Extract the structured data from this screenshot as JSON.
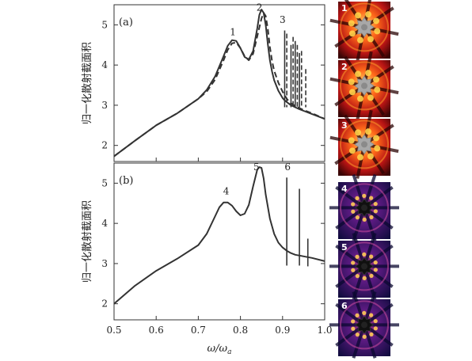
{
  "chart_data": [
    {
      "type": "line",
      "panel_label": "(a)",
      "ylabel": "归一化散射截面积",
      "xlim": [
        0.5,
        1.0
      ],
      "ylim": [
        1.6,
        5.5
      ],
      "yticks": [
        "2",
        "3",
        "4",
        "5"
      ],
      "series": [
        {
          "style": "solid",
          "x": [
            0.5,
            0.55,
            0.6,
            0.65,
            0.7,
            0.72,
            0.74,
            0.76,
            0.77,
            0.78,
            0.79,
            0.8,
            0.81,
            0.82,
            0.83,
            0.84,
            0.845,
            0.85,
            0.855,
            0.86,
            0.865,
            0.87,
            0.875,
            0.88,
            0.89,
            0.9,
            0.905,
            0.91,
            0.92,
            0.93,
            0.94,
            0.95,
            0.97,
            1.0
          ],
          "y": [
            1.73,
            2.12,
            2.5,
            2.8,
            3.16,
            3.38,
            3.72,
            4.22,
            4.48,
            4.62,
            4.6,
            4.42,
            4.2,
            4.14,
            4.35,
            4.92,
            5.25,
            5.38,
            5.3,
            5.0,
            4.52,
            4.12,
            3.84,
            3.62,
            3.36,
            3.18,
            3.12,
            3.08,
            3.0,
            2.95,
            2.9,
            2.86,
            2.78,
            2.66
          ]
        },
        {
          "style": "dashed",
          "x": [
            0.5,
            0.55,
            0.6,
            0.65,
            0.7,
            0.72,
            0.74,
            0.76,
            0.77,
            0.78,
            0.79,
            0.8,
            0.81,
            0.82,
            0.83,
            0.84,
            0.85,
            0.855,
            0.86,
            0.865,
            0.87,
            0.875,
            0.88,
            0.89,
            0.9,
            0.91,
            0.92,
            0.93,
            0.94,
            0.95,
            0.97,
            1.0
          ],
          "y": [
            1.73,
            2.12,
            2.5,
            2.8,
            3.16,
            3.34,
            3.64,
            4.12,
            4.38,
            4.54,
            4.56,
            4.42,
            4.22,
            4.12,
            4.28,
            4.72,
            5.16,
            5.3,
            5.22,
            4.9,
            4.45,
            4.1,
            3.86,
            3.56,
            3.34,
            3.16,
            3.05,
            2.98,
            2.93,
            2.88,
            2.8,
            2.66
          ]
        }
      ],
      "resonances": [
        {
          "style": "solid",
          "x": 0.905,
          "y": 4.86
        },
        {
          "style": "solid",
          "x": 0.92,
          "y": 4.5
        },
        {
          "style": "solid",
          "x": 0.93,
          "y": 4.6
        },
        {
          "style": "solid",
          "x": 0.94,
          "y": 4.3
        },
        {
          "style": "dashed",
          "x": 0.91,
          "y": 4.78
        },
        {
          "style": "dashed",
          "x": 0.925,
          "y": 4.7
        },
        {
          "style": "dashed",
          "x": 0.935,
          "y": 4.5
        },
        {
          "style": "dashed",
          "x": 0.945,
          "y": 4.35
        },
        {
          "style": "dashed",
          "x": 0.955,
          "y": 3.9
        }
      ],
      "annotations": [
        {
          "text": "1",
          "x": 0.782,
          "y": 4.74
        },
        {
          "text": "2",
          "x": 0.845,
          "y": 5.35
        },
        {
          "text": "3",
          "x": 0.9,
          "y": 5.05
        }
      ]
    },
    {
      "type": "line",
      "panel_label": "(b)",
      "ylabel": "归一化散射截面积",
      "xlabel": "ω/ω",
      "xlabel_sub": "a",
      "xlim": [
        0.5,
        1.0
      ],
      "ylim": [
        1.6,
        5.5
      ],
      "xticks": [
        "0.5",
        "0.6",
        "0.7",
        "0.8",
        "0.9",
        "1.0"
      ],
      "yticks": [
        "2",
        "3",
        "4",
        "5"
      ],
      "series": [
        {
          "style": "solid",
          "x": [
            0.5,
            0.55,
            0.6,
            0.65,
            0.7,
            0.72,
            0.74,
            0.75,
            0.76,
            0.77,
            0.78,
            0.79,
            0.8,
            0.81,
            0.82,
            0.83,
            0.84,
            0.845,
            0.85,
            0.855,
            0.86,
            0.87,
            0.88,
            0.89,
            0.9,
            0.91,
            0.92,
            0.93,
            0.94,
            0.95,
            0.97,
            1.0
          ],
          "y": [
            2.0,
            2.45,
            2.82,
            3.12,
            3.46,
            3.74,
            4.18,
            4.4,
            4.52,
            4.52,
            4.44,
            4.3,
            4.2,
            4.24,
            4.46,
            4.92,
            5.34,
            5.4,
            5.38,
            5.12,
            4.72,
            4.12,
            3.74,
            3.52,
            3.4,
            3.32,
            3.26,
            3.22,
            3.2,
            3.18,
            3.14,
            3.06
          ]
        }
      ],
      "resonances": [
        {
          "style": "solid",
          "x": 0.91,
          "y": 5.14
        },
        {
          "style": "solid",
          "x": 0.94,
          "y": 4.86
        },
        {
          "style": "solid",
          "x": 0.96,
          "y": 3.62
        }
      ],
      "annotations": [
        {
          "text": "4",
          "x": 0.766,
          "y": 4.72
        },
        {
          "text": "5",
          "x": 0.838,
          "y": 5.32
        },
        {
          "text": "6",
          "x": 0.912,
          "y": 5.32
        }
      ]
    }
  ],
  "insets": [
    {
      "label": "1",
      "scheme": "hot"
    },
    {
      "label": "2",
      "scheme": "hot"
    },
    {
      "label": "3",
      "scheme": "hot"
    },
    {
      "label": "4",
      "scheme": "blue"
    },
    {
      "label": "5",
      "scheme": "blue"
    },
    {
      "label": "6",
      "scheme": "blue"
    }
  ],
  "colors": {
    "axis": "#333333",
    "curve": "#333333",
    "hot_bg": "#6e0a0a",
    "hot_mid": "#e0301a",
    "hot_hi": "#ffd24a",
    "blue_bg": "#1a1550",
    "blue_mid": "#7a1a8a",
    "blue_hi": "#ffcc55",
    "scatterer": "#a8a8a8"
  }
}
